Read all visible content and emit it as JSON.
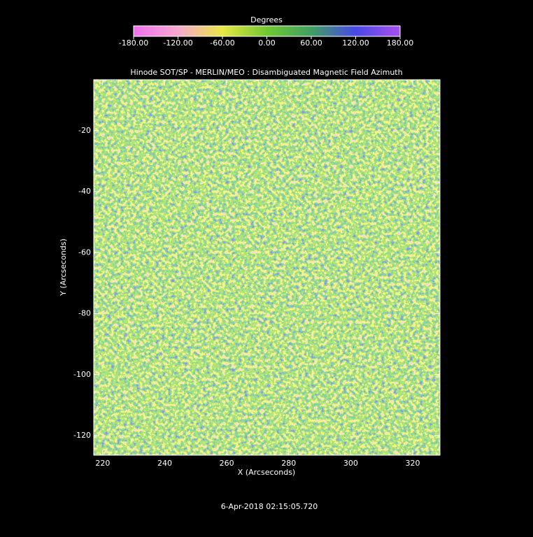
{
  "chart_data": {
    "type": "heatmap",
    "title": "Hinode SOT/SP - MERLIN/MEO : Disambiguated Magnetic Field Azimuth",
    "x_label": "X (Arcseconds)",
    "y_label": "Y (Arcseconds)",
    "xlim": [
      217.1,
      328.8
    ],
    "xticks": [
      220,
      240,
      260,
      280,
      300,
      320
    ],
    "ylim": [
      -126.4,
      -3.3
    ],
    "yticks": [
      -120,
      -100,
      -80,
      -60,
      -40,
      -20
    ],
    "colorbar": {
      "title": "Degrees",
      "lim": [
        -180,
        180
      ],
      "ticks": [
        {
          "value": -180,
          "label": "-180.00"
        },
        {
          "value": -120,
          "label": "-120.00"
        },
        {
          "value": -60,
          "label": "-60.00"
        },
        {
          "value": 0,
          "label": "0.00"
        },
        {
          "value": 60,
          "label": "60.00"
        },
        {
          "value": 120,
          "label": "120.00"
        },
        {
          "value": 180,
          "label": "180.00"
        }
      ],
      "colors": [
        "#f070f0",
        "#f8a8d0",
        "#e8e840",
        "#70c830",
        "#40a060",
        "#4848e8",
        "#a850f0"
      ]
    },
    "footer": "6-Apr-2018 02:15:05.720"
  }
}
